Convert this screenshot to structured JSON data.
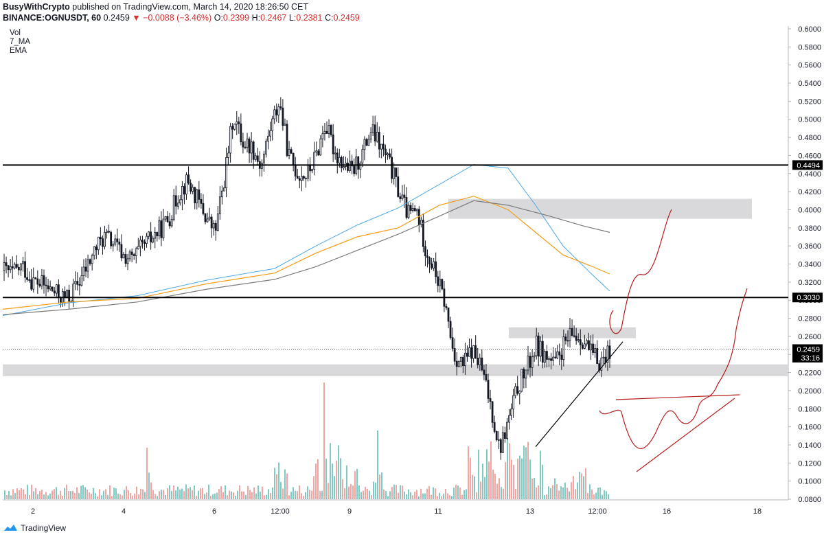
{
  "header": {
    "author_line": "BusyWithCrypto published on TradingView.com, March 14, 2020 18:26:50 CET",
    "author": "BusyWithCrypto",
    "published_text": " published on TradingView.com, March 14, 2020 18:26:50 CET",
    "symbol": "BINANCE:OGNUSDT, 60",
    "last": "0.2459",
    "change": "−0.0088 (−3.46%)",
    "open_label": "O:",
    "open": "0.2399",
    "high_label": "H:",
    "high": "0.2467",
    "low_label": "L:",
    "low": "0.2381",
    "close_label": "C:",
    "close": "0.2459"
  },
  "indicators": [
    "Vol",
    "7_MA",
    "EMA"
  ],
  "price_axis": {
    "ticks": [
      "0.6000",
      "0.5800",
      "0.5600",
      "0.5400",
      "0.5200",
      "0.5000",
      "0.4800",
      "0.4600",
      "0.4400",
      "0.4200",
      "0.4000",
      "0.3800",
      "0.3600",
      "0.3400",
      "0.3200",
      "0.3000",
      "0.2800",
      "0.2600",
      "0.2400",
      "0.2200",
      "0.2000",
      "0.1800",
      "0.1600",
      "0.1400",
      "0.1200",
      "0.1000",
      "0.0800"
    ],
    "labels": [
      {
        "text": "0.4494",
        "value": 0.4494,
        "style": "black"
      },
      {
        "text": "0.3030",
        "value": 0.303,
        "style": "black"
      },
      {
        "text": "0.2459",
        "value": 0.2459,
        "style": "black"
      },
      {
        "text": "33:16",
        "value": 0.2365,
        "style": "black"
      }
    ]
  },
  "time_axis": {
    "labels": [
      "2",
      "4",
      "6",
      "12:00",
      "9",
      "11",
      "13",
      "12:00",
      "16",
      "18"
    ]
  },
  "colors": {
    "up": "#26a69a",
    "down": "#ef5350",
    "candle": "#131722",
    "ema_blue": "#4aa8e8",
    "ema_orange": "#f39c12",
    "ema_gray": "#7b7b7b",
    "drawing_red": "#b71c1c",
    "zone": "#d9d9dc"
  },
  "chart_data": {
    "type": "candlestick",
    "symbol": "OGNUSDT",
    "exchange": "BINANCE",
    "interval": "60",
    "ylim": [
      0.08,
      0.6
    ],
    "horizontal_levels": [
      0.4494,
      0.303
    ],
    "current_price": 0.2459,
    "zones": [
      {
        "from": 0.39,
        "to": 0.412
      },
      {
        "from": 0.258,
        "to": 0.27
      },
      {
        "from": 0.216,
        "to": 0.229
      }
    ],
    "price_path_close": [
      0.333,
      0.33,
      0.338,
      0.322,
      0.318,
      0.312,
      0.305,
      0.302,
      0.318,
      0.336,
      0.358,
      0.371,
      0.362,
      0.349,
      0.345,
      0.358,
      0.368,
      0.378,
      0.392,
      0.418,
      0.432,
      0.412,
      0.392,
      0.375,
      0.435,
      0.505,
      0.475,
      0.47,
      0.448,
      0.49,
      0.52,
      0.46,
      0.44,
      0.438,
      0.46,
      0.495,
      0.465,
      0.45,
      0.442,
      0.462,
      0.488,
      0.47,
      0.45,
      0.42,
      0.395,
      0.398,
      0.355,
      0.33,
      0.298,
      0.24,
      0.228,
      0.245,
      0.225,
      0.185,
      0.135,
      0.168,
      0.205,
      0.225,
      0.25,
      0.238,
      0.228,
      0.25,
      0.262,
      0.258,
      0.24,
      0.232,
      0.246
    ],
    "volume_peaks": [
      0.2,
      0.5,
      0.3,
      0.9,
      0.4,
      1.0,
      0.6,
      0.5,
      0.4,
      0.3
    ]
  }
}
